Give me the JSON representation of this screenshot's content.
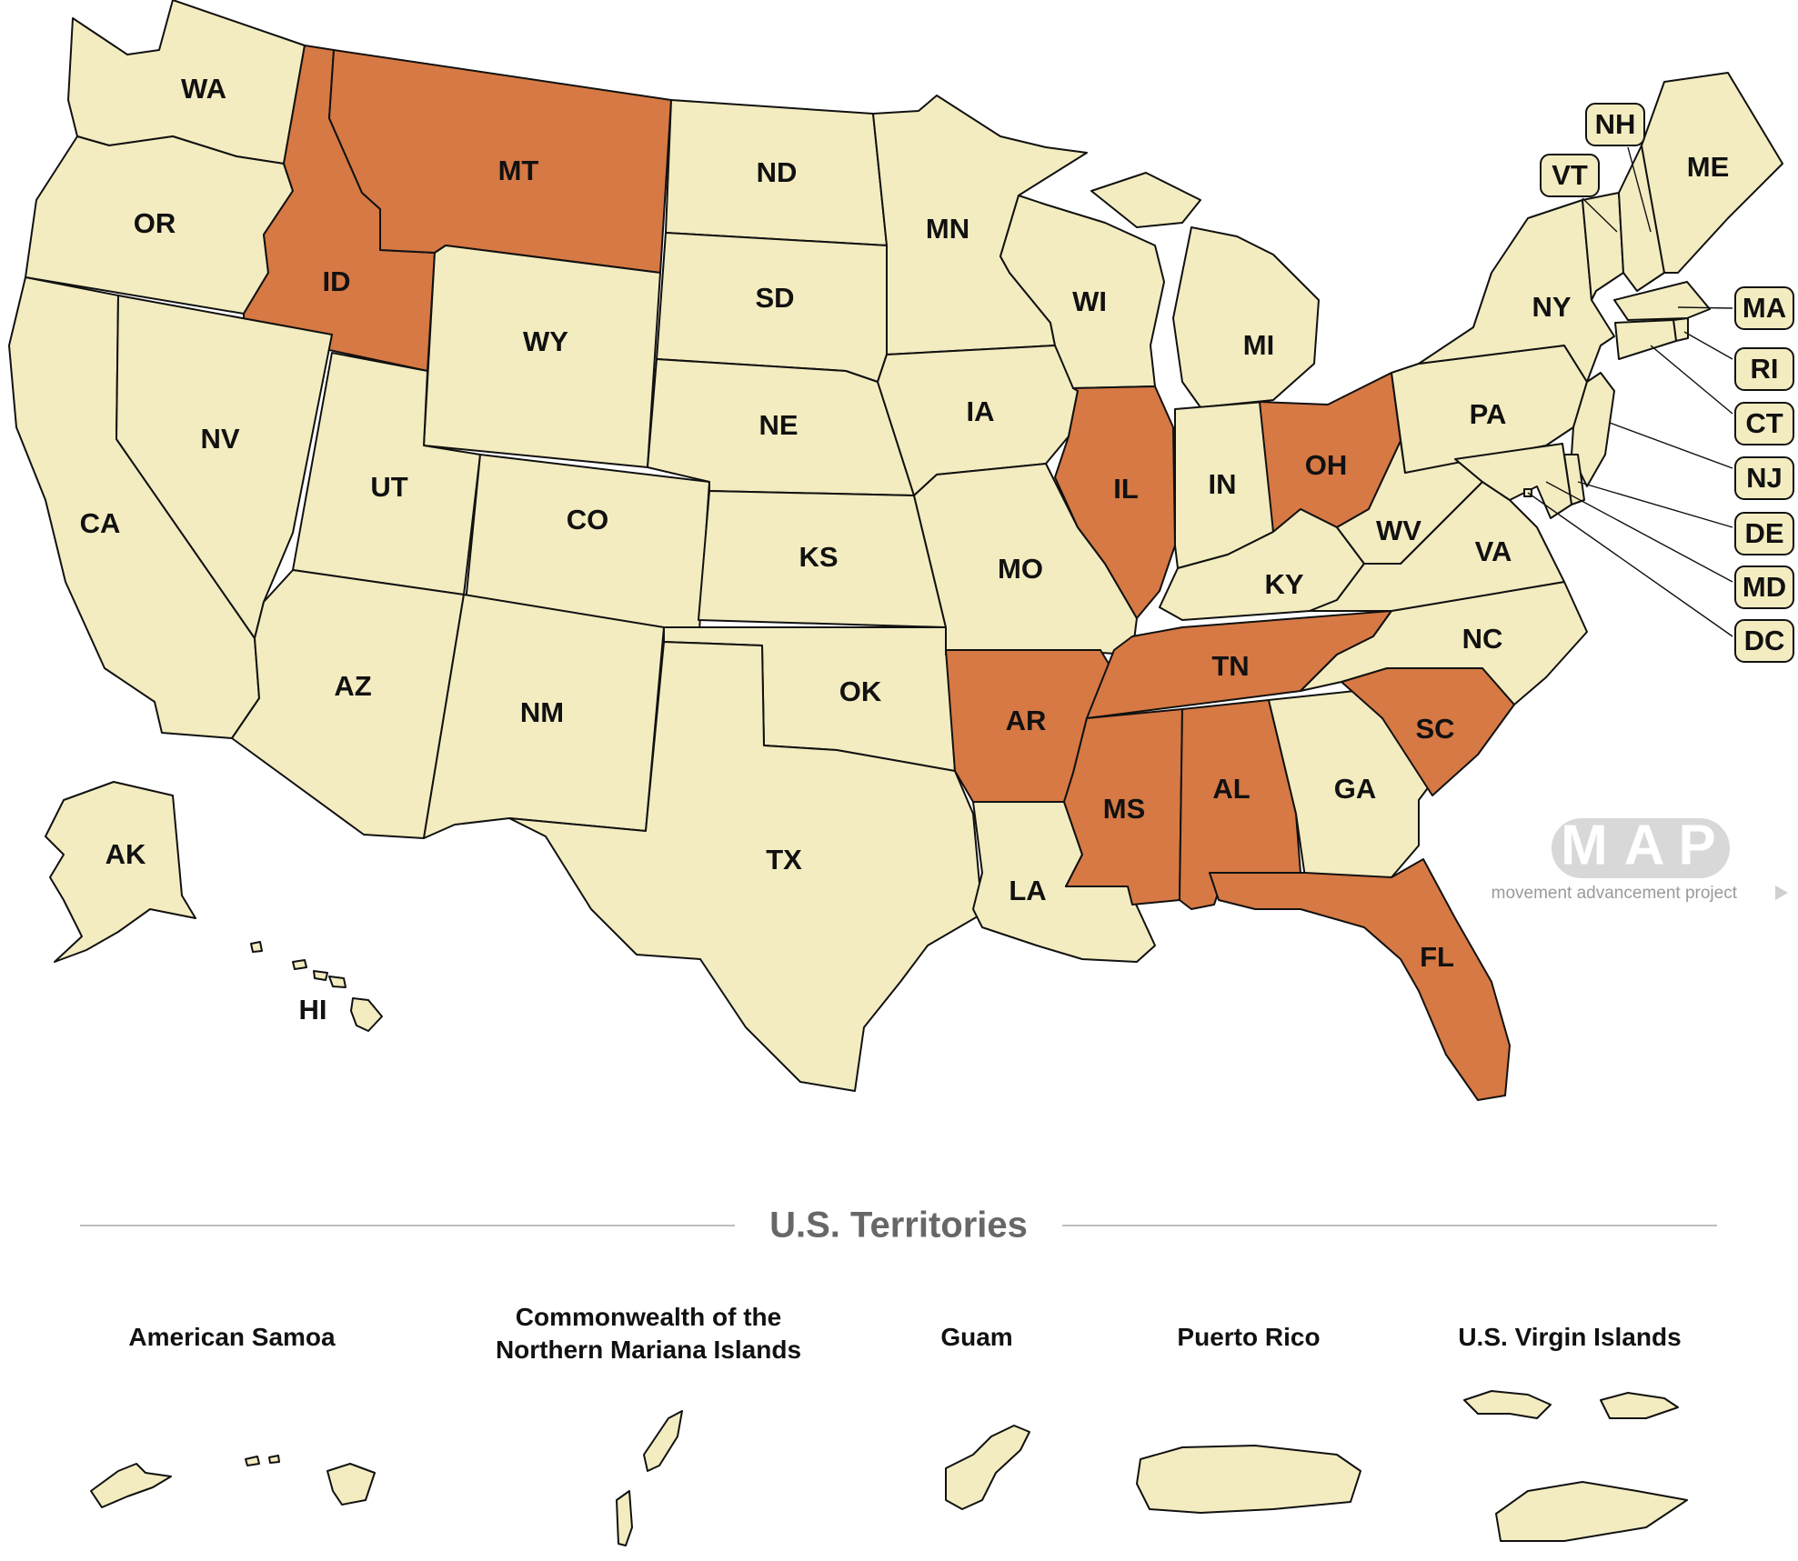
{
  "colors": {
    "default_fill": "#f3ecc0",
    "highlight_fill": "#d67944",
    "border": "#111111"
  },
  "states": [
    {
      "code": "WA",
      "label": "WA",
      "highlighted": false
    },
    {
      "code": "OR",
      "label": "OR",
      "highlighted": false
    },
    {
      "code": "CA",
      "label": "CA",
      "highlighted": false
    },
    {
      "code": "ID",
      "label": "ID",
      "highlighted": true
    },
    {
      "code": "NV",
      "label": "NV",
      "highlighted": false
    },
    {
      "code": "MT",
      "label": "MT",
      "highlighted": true
    },
    {
      "code": "WY",
      "label": "WY",
      "highlighted": false
    },
    {
      "code": "UT",
      "label": "UT",
      "highlighted": false
    },
    {
      "code": "AZ",
      "label": "AZ",
      "highlighted": false
    },
    {
      "code": "CO",
      "label": "CO",
      "highlighted": false
    },
    {
      "code": "NM",
      "label": "NM",
      "highlighted": false
    },
    {
      "code": "ND",
      "label": "ND",
      "highlighted": false
    },
    {
      "code": "SD",
      "label": "SD",
      "highlighted": false
    },
    {
      "code": "NE",
      "label": "NE",
      "highlighted": false
    },
    {
      "code": "KS",
      "label": "KS",
      "highlighted": false
    },
    {
      "code": "OK",
      "label": "OK",
      "highlighted": false
    },
    {
      "code": "TX",
      "label": "TX",
      "highlighted": false
    },
    {
      "code": "MN",
      "label": "MN",
      "highlighted": false
    },
    {
      "code": "IA",
      "label": "IA",
      "highlighted": false
    },
    {
      "code": "MO",
      "label": "MO",
      "highlighted": false
    },
    {
      "code": "AR",
      "label": "AR",
      "highlighted": true
    },
    {
      "code": "LA",
      "label": "LA",
      "highlighted": false
    },
    {
      "code": "WI",
      "label": "WI",
      "highlighted": false
    },
    {
      "code": "IL",
      "label": "IL",
      "highlighted": true
    },
    {
      "code": "MI",
      "label": "MI",
      "highlighted": false
    },
    {
      "code": "IN",
      "label": "IN",
      "highlighted": false
    },
    {
      "code": "OH",
      "label": "OH",
      "highlighted": true
    },
    {
      "code": "KY",
      "label": "KY",
      "highlighted": false
    },
    {
      "code": "TN",
      "label": "TN",
      "highlighted": true
    },
    {
      "code": "MS",
      "label": "MS",
      "highlighted": true
    },
    {
      "code": "AL",
      "label": "AL",
      "highlighted": true
    },
    {
      "code": "GA",
      "label": "GA",
      "highlighted": false
    },
    {
      "code": "FL",
      "label": "FL",
      "highlighted": true
    },
    {
      "code": "SC",
      "label": "SC",
      "highlighted": true
    },
    {
      "code": "NC",
      "label": "NC",
      "highlighted": false
    },
    {
      "code": "VA",
      "label": "VA",
      "highlighted": false
    },
    {
      "code": "WV",
      "label": "WV",
      "highlighted": false
    },
    {
      "code": "PA",
      "label": "PA",
      "highlighted": false
    },
    {
      "code": "NY",
      "label": "NY",
      "highlighted": false
    },
    {
      "code": "VT",
      "label": "VT",
      "highlighted": false
    },
    {
      "code": "NH",
      "label": "NH",
      "highlighted": false
    },
    {
      "code": "ME",
      "label": "ME",
      "highlighted": false
    },
    {
      "code": "MA",
      "label": "MA",
      "highlighted": false
    },
    {
      "code": "RI",
      "label": "RI",
      "highlighted": false
    },
    {
      "code": "CT",
      "label": "CT",
      "highlighted": false
    },
    {
      "code": "NJ",
      "label": "NJ",
      "highlighted": false
    },
    {
      "code": "DE",
      "label": "DE",
      "highlighted": false
    },
    {
      "code": "MD",
      "label": "MD",
      "highlighted": false
    },
    {
      "code": "DC",
      "label": "DC",
      "highlighted": false
    },
    {
      "code": "AK",
      "label": "AK",
      "highlighted": false
    },
    {
      "code": "HI",
      "label": "HI",
      "highlighted": false
    }
  ],
  "territories_section": {
    "title": "U.S. Territories",
    "items": [
      {
        "name_lines": [
          "American Samoa"
        ],
        "highlighted": false
      },
      {
        "name_lines": [
          "Commonwealth of the",
          "Northern Mariana Islands"
        ],
        "highlighted": false
      },
      {
        "name_lines": [
          "Guam"
        ],
        "highlighted": false
      },
      {
        "name_lines": [
          "Puerto Rico"
        ],
        "highlighted": false
      },
      {
        "name_lines": [
          "U.S. Virgin Islands"
        ],
        "highlighted": false
      }
    ]
  },
  "logo": {
    "letters": [
      "M",
      "A",
      "P"
    ],
    "tagline": "movement advancement project"
  }
}
